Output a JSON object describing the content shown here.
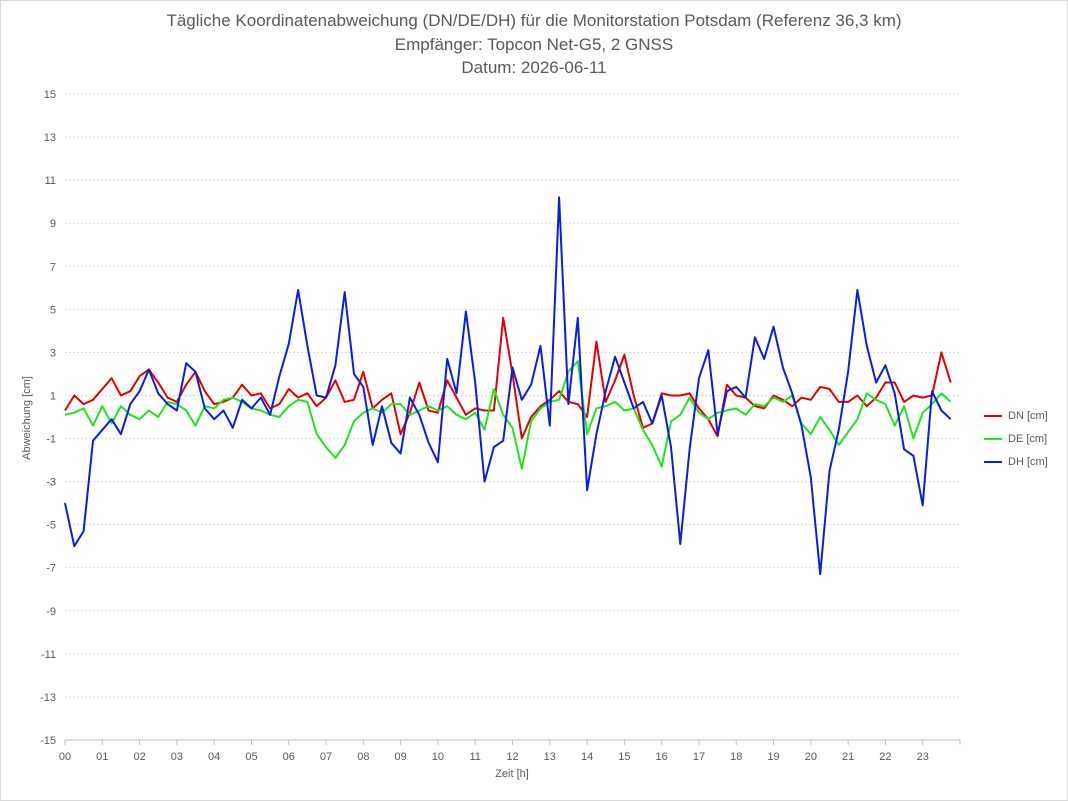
{
  "chart_data": {
    "type": "line",
    "title": "Tägliche Koordinatenabweichung (DN/DE/DH) für die Monitorstation Potsdam (Referenz 36,3 km)",
    "subtitle": "Empfänger: Topcon Net-G5, 2 GNSS",
    "date": "Datum: 2026-06-11",
    "xlabel": "Zeit [h]",
    "ylabel": "Abweichung [cm]",
    "ylim": [
      -15,
      15
    ],
    "xlim": [
      0,
      24
    ],
    "yticks": [
      "15",
      "13",
      "11",
      "9",
      "7",
      "5",
      "3",
      "1",
      "-1",
      "-3",
      "-5",
      "-7",
      "-9",
      "-11",
      "-13",
      "-15"
    ],
    "xticks": [
      "00",
      "01",
      "02",
      "03",
      "04",
      "05",
      "06",
      "07",
      "08",
      "09",
      "10",
      "11",
      "12",
      "13",
      "14",
      "15",
      "16",
      "17",
      "18",
      "19",
      "20",
      "21",
      "22",
      "23"
    ],
    "grid": true,
    "legend_position": "right",
    "sample_interval_h": 0.25,
    "series": [
      {
        "name": "DN [cm]",
        "color": "#e60000",
        "values": [
          0.3,
          1.0,
          0.6,
          0.8,
          1.3,
          1.8,
          1.0,
          1.2,
          1.9,
          2.2,
          1.6,
          0.9,
          0.7,
          1.5,
          2.1,
          1.2,
          0.6,
          0.7,
          0.9,
          1.5,
          1.0,
          1.1,
          0.4,
          0.6,
          1.3,
          0.9,
          1.1,
          0.5,
          0.9,
          1.7,
          0.7,
          0.8,
          2.1,
          0.4,
          0.8,
          1.1,
          -0.8,
          0.2,
          1.6,
          0.3,
          0.2,
          1.7,
          0.9,
          0.1,
          0.4,
          0.3,
          0.3,
          4.6,
          2.0,
          -1.0,
          0.0,
          0.5,
          0.8,
          1.2,
          0.7,
          0.6,
          0.0,
          3.5,
          0.7,
          1.7,
          2.9,
          1.0,
          -0.5,
          -0.3,
          1.1,
          1.0,
          1.0,
          1.1,
          0.4,
          -0.1,
          -0.9,
          1.5,
          1.0,
          0.9,
          0.5,
          0.4,
          1.0,
          0.8,
          0.5,
          0.9,
          0.8,
          1.4,
          1.3,
          0.7,
          0.7,
          1.0,
          0.5,
          0.9,
          1.6,
          1.6,
          0.7,
          1.0,
          0.9,
          1.0,
          3.0,
          1.6
        ]
      },
      {
        "name": "DE [cm]",
        "color": "#1ee61e",
        "values": [
          0.1,
          0.2,
          0.4,
          -0.4,
          0.5,
          -0.3,
          0.5,
          0.1,
          -0.1,
          0.3,
          0.0,
          0.7,
          0.6,
          0.3,
          -0.4,
          0.5,
          0.4,
          0.8,
          0.9,
          0.7,
          0.4,
          0.3,
          0.1,
          0.0,
          0.5,
          0.8,
          0.7,
          -0.8,
          -1.4,
          -1.9,
          -1.3,
          -0.2,
          0.2,
          0.4,
          0.2,
          0.6,
          0.6,
          0.1,
          0.3,
          0.5,
          0.3,
          0.5,
          0.1,
          -0.1,
          0.2,
          -0.6,
          1.3,
          0.1,
          -0.5,
          -2.4,
          -0.2,
          0.4,
          0.7,
          0.8,
          2.1,
          2.6,
          -0.8,
          0.4,
          0.5,
          0.7,
          0.3,
          0.4,
          -0.6,
          -1.3,
          -2.3,
          -0.2,
          0.1,
          0.9,
          0.2,
          -0.1,
          0.2,
          0.3,
          0.4,
          0.1,
          0.6,
          0.5,
          0.9,
          0.7,
          1.0,
          -0.3,
          -0.8,
          0.0,
          -0.6,
          -1.3,
          -0.7,
          -0.1,
          1.1,
          0.8,
          0.6,
          -0.4,
          0.5,
          -1.0,
          0.2,
          0.6,
          1.1,
          0.7
        ]
      },
      {
        "name": "DH [cm]",
        "color": "#0a1ee1",
        "values": [
          -4.0,
          -6.0,
          -5.3,
          -1.1,
          -0.6,
          -0.1,
          -0.8,
          0.6,
          1.2,
          2.2,
          1.1,
          0.6,
          0.3,
          2.5,
          2.1,
          0.4,
          -0.1,
          0.3,
          -0.5,
          0.8,
          0.4,
          0.9,
          0.1,
          1.9,
          3.4,
          5.9,
          3.3,
          1.0,
          0.9,
          2.4,
          5.8,
          2.0,
          1.4,
          -1.3,
          0.5,
          -1.2,
          -1.7,
          0.9,
          0.1,
          -1.2,
          -2.1,
          2.7,
          1.1,
          4.9,
          1.6,
          -3.0,
          -1.4,
          -1.1,
          2.3,
          0.8,
          1.5,
          3.3,
          -0.4,
          10.2,
          0.6,
          4.6,
          -3.4,
          -0.8,
          1.2,
          2.8,
          1.6,
          0.4,
          0.7,
          -0.3,
          1.0,
          -1.4,
          -5.9,
          -1.5,
          1.8,
          3.1,
          -0.8,
          1.2,
          1.4,
          0.9,
          3.7,
          2.7,
          4.2,
          2.3,
          1.1,
          -0.4,
          -2.8,
          -7.3,
          -2.5,
          -0.6,
          2.1,
          5.9,
          3.3,
          1.6,
          2.4,
          1.1,
          -1.5,
          -1.8,
          -4.1,
          1.2,
          0.3,
          -0.1
        ]
      }
    ]
  }
}
